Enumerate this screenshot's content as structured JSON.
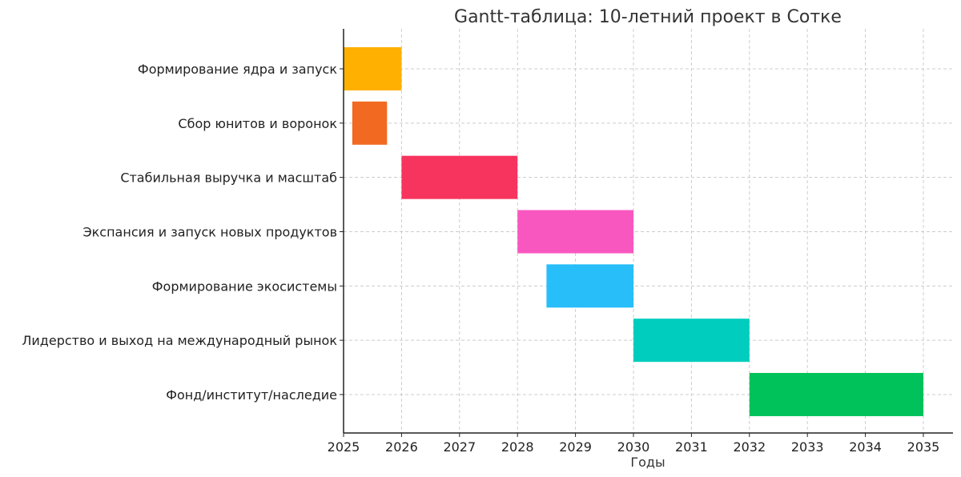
{
  "chart_data": {
    "type": "bar",
    "subtype": "gantt",
    "title": "Gantt-таблица: 10-летний проект в Сотке",
    "xlabel": "Годы",
    "ylabel": "",
    "xlim": [
      2025,
      2035.5
    ],
    "xticks": [
      "2025",
      "2026",
      "2027",
      "2028",
      "2029",
      "2030",
      "2031",
      "2032",
      "2033",
      "2034",
      "2035"
    ],
    "grid": true,
    "tasks": [
      {
        "name": "Формирование ядра и запуск",
        "start": 2025.0,
        "end": 2026.0,
        "color": "#FFB000"
      },
      {
        "name": "Сбор юнитов и воронок",
        "start": 2025.15,
        "end": 2025.75,
        "color": "#F26A21"
      },
      {
        "name": "Стабильная выручка и масштаб",
        "start": 2026.0,
        "end": 2028.0,
        "color": "#F7345E"
      },
      {
        "name": "Экспансия и запуск новых продуктов",
        "start": 2028.0,
        "end": 2030.0,
        "color": "#F957C0"
      },
      {
        "name": "Формирование экосистемы",
        "start": 2028.5,
        "end": 2030.0,
        "color": "#27BEF9"
      },
      {
        "name": "Лидерство и выход на международный рынок",
        "start": 2030.0,
        "end": 2032.0,
        "color": "#00CDBE"
      },
      {
        "name": "Фонд/институт/наследие",
        "start": 2032.0,
        "end": 2035.0,
        "color": "#00C25B"
      }
    ]
  }
}
